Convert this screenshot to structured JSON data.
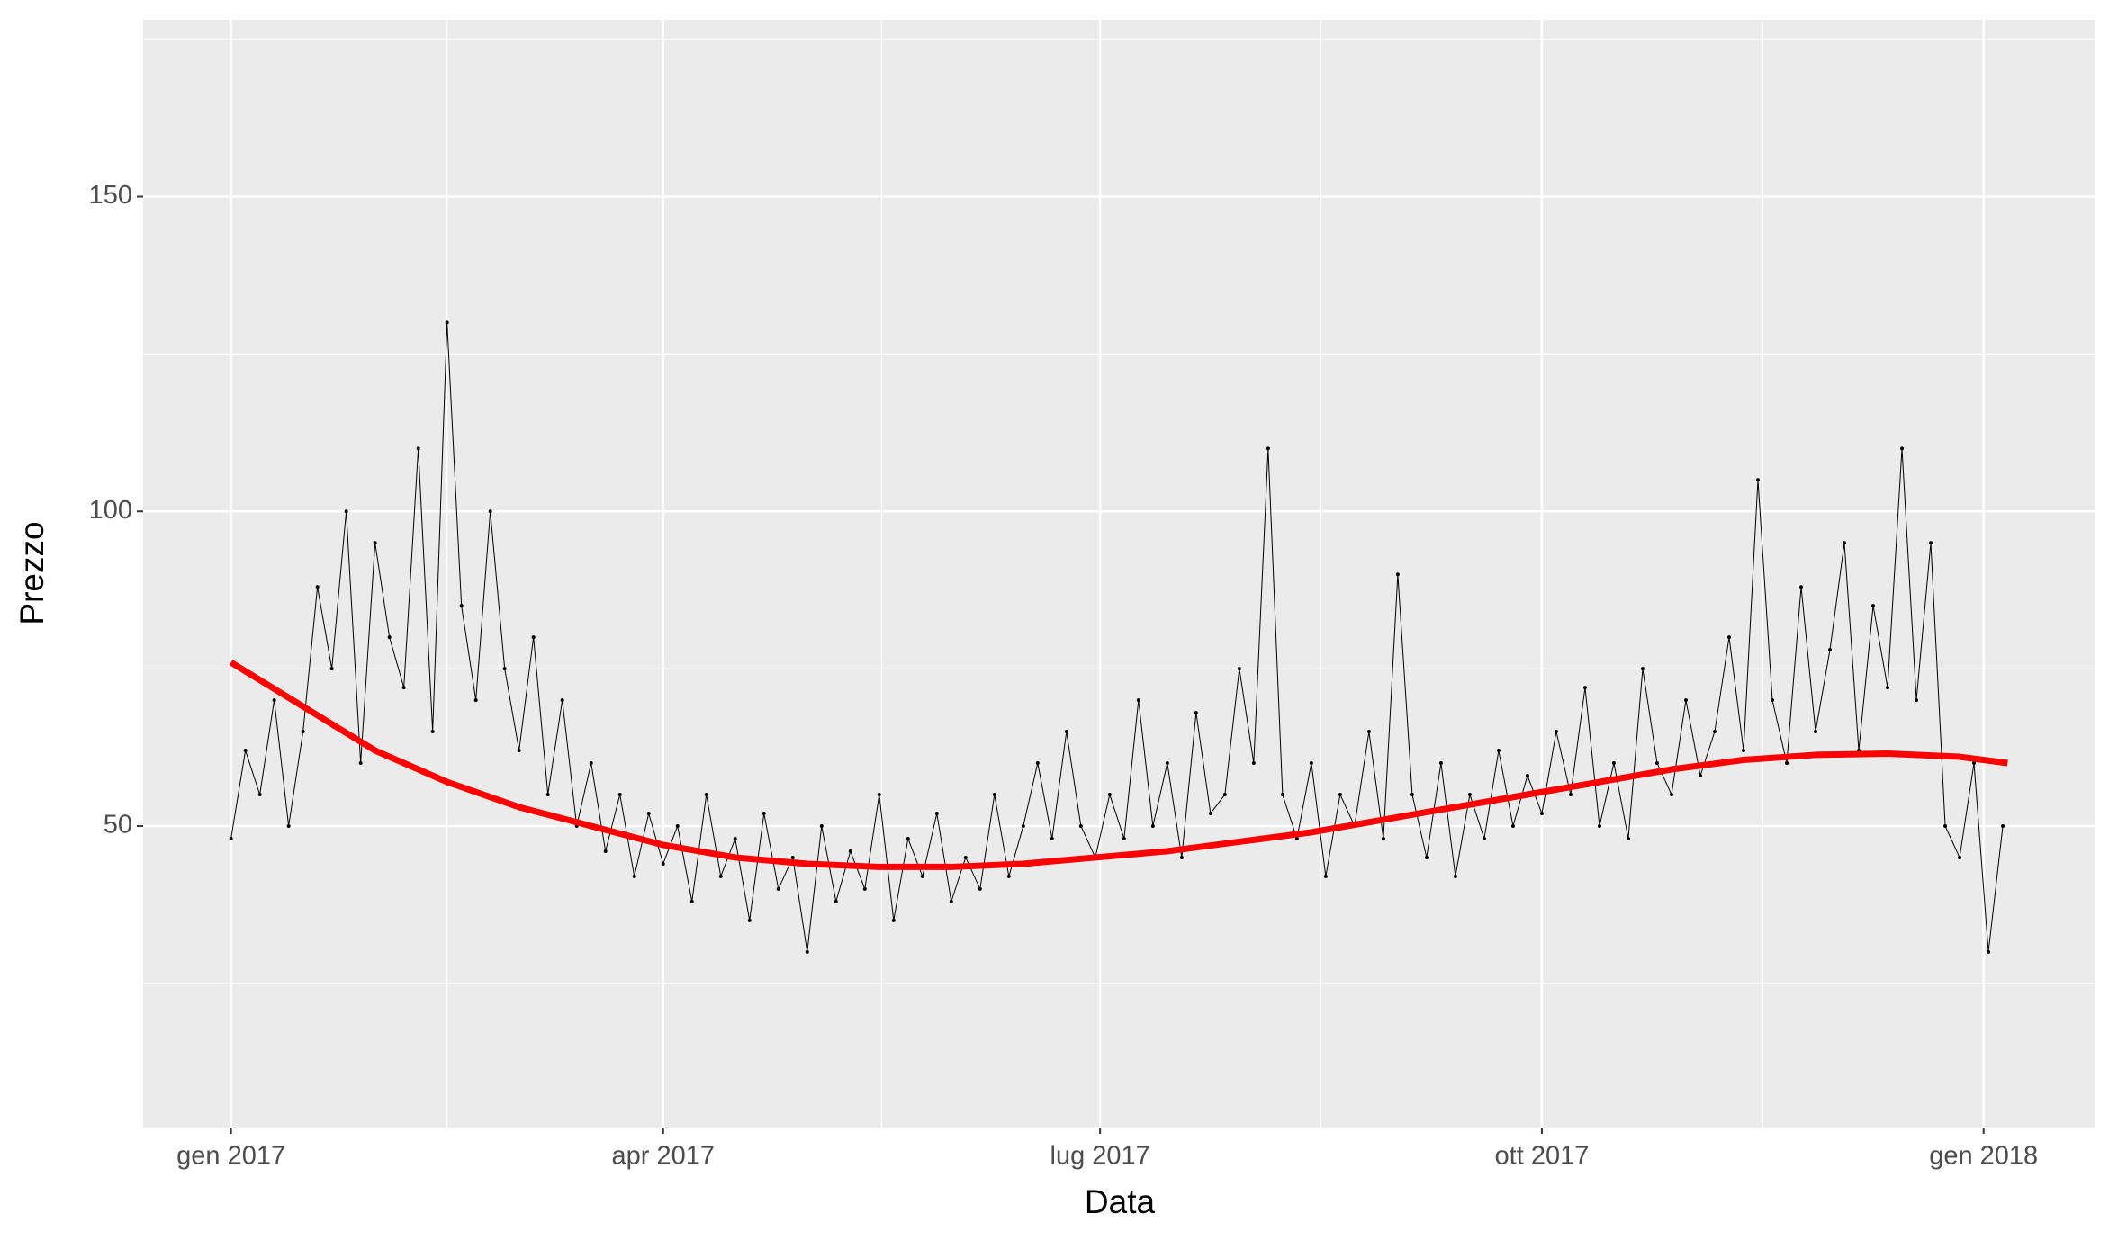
{
  "chart_data": {
    "type": "line",
    "x_label": "Data",
    "y_label": "Prezzo",
    "xlim": [
      -18.3,
      388.3
    ],
    "ylim": [
      2.1,
      178.1
    ],
    "xticks": [
      {
        "value": 0,
        "label": "gen 2017"
      },
      {
        "value": 90,
        "label": "apr 2017"
      },
      {
        "value": 181,
        "label": "lug 2017"
      },
      {
        "value": 273,
        "label": "ott 2017"
      },
      {
        "value": 365,
        "label": "gen 2018"
      }
    ],
    "xminor": [
      45,
      135.5,
      227,
      319
    ],
    "yticks": [
      50,
      100,
      150
    ],
    "yminor": [
      25,
      75,
      125,
      175
    ],
    "grid": true,
    "series": [
      {
        "color": "#000000",
        "x": [
          0,
          3,
          6,
          9,
          12,
          15,
          18,
          21,
          24,
          27,
          30,
          33,
          36,
          39,
          42,
          45,
          48,
          51,
          54,
          57,
          60,
          63,
          66,
          69,
          72,
          75,
          78,
          81,
          84,
          87,
          90,
          93,
          96,
          99,
          102,
          105,
          108,
          111,
          114,
          117,
          120,
          123,
          126,
          129,
          132,
          135,
          138,
          141,
          144,
          147,
          150,
          153,
          156,
          159,
          162,
          165,
          168,
          171,
          174,
          177,
          180,
          183,
          186,
          189,
          192,
          195,
          198,
          201,
          204,
          207,
          210,
          213,
          216,
          219,
          222,
          225,
          228,
          231,
          234,
          237,
          240,
          243,
          246,
          249,
          252,
          255,
          258,
          261,
          264,
          267,
          270,
          273,
          276,
          279,
          282,
          285,
          288,
          291,
          294,
          297,
          300,
          303,
          306,
          309,
          312,
          315,
          318,
          321,
          324,
          327,
          330,
          333,
          336,
          339,
          342,
          345,
          348,
          351,
          354,
          357,
          360,
          363,
          366,
          369
        ],
        "values": [
          48,
          62,
          55,
          70,
          50,
          65,
          88,
          75,
          100,
          60,
          95,
          80,
          72,
          110,
          65,
          130,
          85,
          70,
          100,
          75,
          62,
          80,
          55,
          70,
          50,
          60,
          46,
          55,
          42,
          52,
          44,
          50,
          38,
          55,
          42,
          48,
          35,
          52,
          40,
          45,
          30,
          50,
          38,
          46,
          40,
          55,
          35,
          48,
          42,
          52,
          38,
          45,
          40,
          55,
          42,
          50,
          60,
          48,
          65,
          50,
          45,
          55,
          48,
          70,
          50,
          60,
          45,
          68,
          52,
          55,
          75,
          60,
          110,
          55,
          48,
          60,
          42,
          55,
          50,
          65,
          48,
          90,
          55,
          45,
          60,
          42,
          55,
          48,
          62,
          50,
          58,
          52,
          65,
          55,
          72,
          50,
          60,
          48,
          75,
          60,
          55,
          70,
          58,
          65,
          80,
          62,
          105,
          70,
          60,
          88,
          65,
          78,
          95,
          62,
          85,
          72,
          110,
          70,
          95,
          50,
          45,
          60,
          30,
          50
        ]
      }
    ],
    "smooth": {
      "color": "#ff0000",
      "x": [
        0,
        15,
        30,
        45,
        60,
        75,
        90,
        105,
        120,
        135,
        150,
        165,
        180,
        195,
        210,
        225,
        240,
        255,
        270,
        285,
        300,
        315,
        330,
        345,
        360,
        370
      ],
      "values": [
        76,
        69,
        62,
        57,
        53,
        50,
        47,
        45,
        44,
        43.5,
        43.5,
        44,
        45,
        46,
        47.5,
        49,
        51,
        53,
        55,
        57,
        59,
        60.5,
        61.3,
        61.5,
        61,
        60
      ]
    }
  }
}
